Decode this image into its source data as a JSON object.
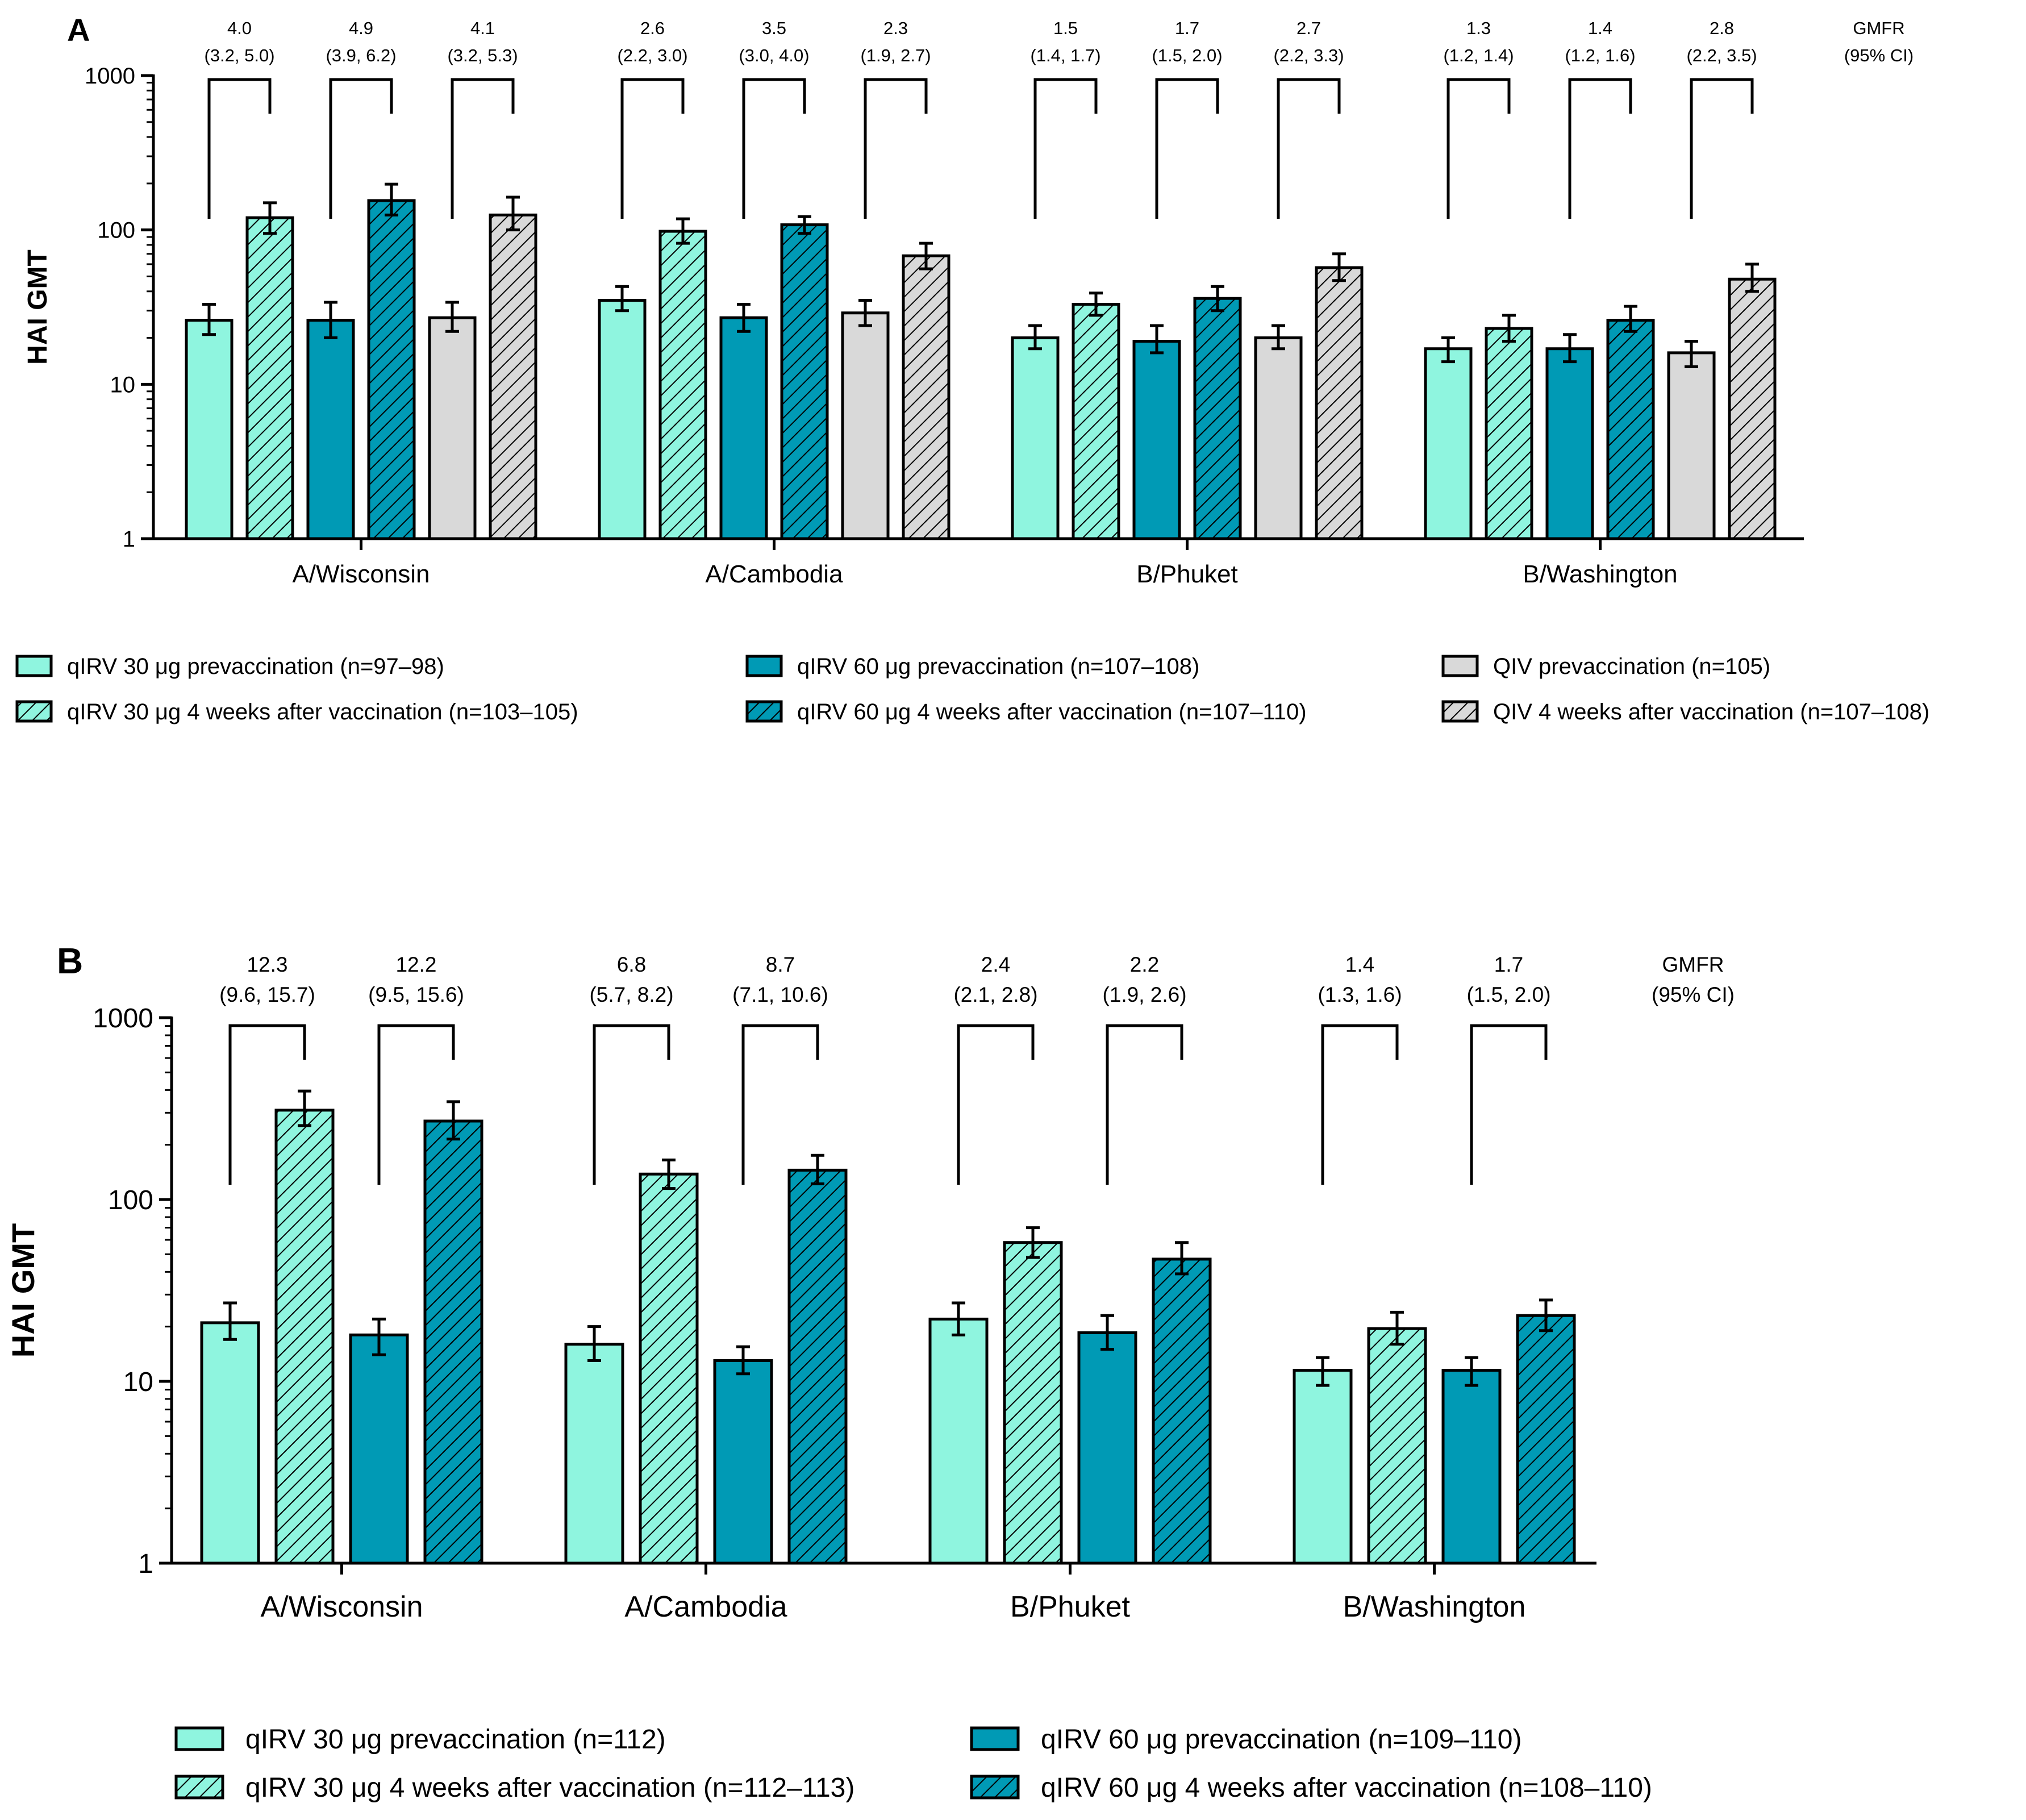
{
  "chart_data": [
    {
      "panel_label": "A",
      "type": "bar",
      "scale": "log",
      "ylabel": "HAI GMT",
      "ylim": [
        1,
        1000
      ],
      "yticks": [
        "1",
        "10",
        "100",
        "1000"
      ],
      "categories": [
        "A/Wisconsin",
        "A/Cambodia",
        "B/Phuket",
        "B/Washington"
      ],
      "series": [
        {
          "name": "qIRV 30 μg prevaccination (n=97–98)",
          "color": "#8ff5df",
          "hatched": false,
          "values": [
            26,
            35,
            20,
            17
          ],
          "err_low": [
            21,
            30,
            17,
            14
          ],
          "err_high": [
            33,
            43,
            24,
            20
          ]
        },
        {
          "name": "qIRV 30 μg 4 weeks after vaccination (n=103–105)",
          "color": "#8ff5df",
          "hatched": true,
          "values": [
            120,
            98,
            33,
            23
          ],
          "err_low": [
            95,
            82,
            28,
            19
          ],
          "err_high": [
            150,
            118,
            39,
            28
          ]
        },
        {
          "name": "qIRV 60 μg prevaccination (n=107–108)",
          "color": "#009ab5",
          "hatched": false,
          "values": [
            26,
            27,
            19,
            17
          ],
          "err_low": [
            20,
            22,
            16,
            14
          ],
          "err_high": [
            34,
            33,
            24,
            21
          ]
        },
        {
          "name": "qIRV 60 μg 4 weeks after vaccination (n=107–110)",
          "color": "#009ab5",
          "hatched": true,
          "values": [
            155,
            108,
            36,
            26
          ],
          "err_low": [
            125,
            95,
            30,
            22
          ],
          "err_high": [
            198,
            122,
            43,
            32
          ]
        },
        {
          "name": "QIV prevaccination (n=105)",
          "color": "#d9d9d9",
          "hatched": false,
          "values": [
            27,
            29,
            20,
            16
          ],
          "err_low": [
            22,
            24,
            17,
            13
          ],
          "err_high": [
            34,
            35,
            24,
            19
          ]
        },
        {
          "name": "QIV 4 weeks after vaccination (n=107–108)",
          "color": "#d9d9d9",
          "hatched": true,
          "values": [
            125,
            68,
            57,
            48
          ],
          "err_low": [
            100,
            56,
            47,
            40
          ],
          "err_high": [
            163,
            82,
            70,
            60
          ]
        }
      ],
      "gmfr_header": [
        "GMFR",
        "(95% CI)"
      ],
      "gmfr": [
        [
          {
            "value": "4.0",
            "ci": "(3.2, 5.0)"
          },
          {
            "value": "4.9",
            "ci": "(3.9, 6.2)"
          },
          {
            "value": "4.1",
            "ci": "(3.2, 5.3)"
          }
        ],
        [
          {
            "value": "2.6",
            "ci": "(2.2, 3.0)"
          },
          {
            "value": "3.5",
            "ci": "(3.0, 4.0)"
          },
          {
            "value": "2.3",
            "ci": "(1.9, 2.7)"
          }
        ],
        [
          {
            "value": "1.5",
            "ci": "(1.4, 1.7)"
          },
          {
            "value": "1.7",
            "ci": "(1.5, 2.0)"
          },
          {
            "value": "2.7",
            "ci": "(2.2, 3.3)"
          }
        ],
        [
          {
            "value": "1.3",
            "ci": "(1.2, 1.4)"
          },
          {
            "value": "1.4",
            "ci": "(1.2, 1.6)"
          },
          {
            "value": "2.8",
            "ci": "(2.2, 3.5)"
          }
        ]
      ],
      "legend_placement": "bottom"
    },
    {
      "panel_label": "B",
      "type": "bar",
      "scale": "log",
      "ylabel": "HAI GMT",
      "ylim": [
        1,
        1000
      ],
      "yticks": [
        "1",
        "10",
        "100",
        "1000"
      ],
      "categories": [
        "A/Wisconsin",
        "A/Cambodia",
        "B/Phuket",
        "B/Washington"
      ],
      "series": [
        {
          "name": "qIRV 30 μg prevaccination (n=112)",
          "color": "#8ff5df",
          "hatched": false,
          "values": [
            21,
            16,
            22,
            11.5
          ],
          "err_low": [
            17,
            13,
            18,
            9.5
          ],
          "err_high": [
            27,
            20,
            27,
            13.5
          ]
        },
        {
          "name": "qIRV 30 μg 4 weeks after vaccination (n=112–113)",
          "color": "#8ff5df",
          "hatched": true,
          "values": [
            310,
            138,
            58,
            19.5
          ],
          "err_low": [
            255,
            115,
            48,
            16
          ],
          "err_high": [
            395,
            165,
            70,
            24
          ]
        },
        {
          "name": "qIRV 60 μg prevaccination (n=109–110)",
          "color": "#009ab5",
          "hatched": false,
          "values": [
            18,
            13,
            18.5,
            11.5
          ],
          "err_low": [
            14,
            11,
            15,
            9.5
          ],
          "err_high": [
            22,
            15.5,
            23,
            13.5
          ]
        },
        {
          "name": "qIRV 60 μg 4 weeks after vaccination (n=108–110)",
          "color": "#009ab5",
          "hatched": true,
          "values": [
            270,
            145,
            47,
            23
          ],
          "err_low": [
            215,
            122,
            39,
            19
          ],
          "err_high": [
            345,
            175,
            58,
            28
          ]
        }
      ],
      "gmfr_header": [
        "GMFR",
        "(95% CI)"
      ],
      "gmfr": [
        [
          {
            "value": "12.3",
            "ci": "(9.6, 15.7)"
          },
          {
            "value": "12.2",
            "ci": "(9.5, 15.6)"
          }
        ],
        [
          {
            "value": "6.8",
            "ci": "(5.7, 8.2)"
          },
          {
            "value": "8.7",
            "ci": "(7.1, 10.6)"
          }
        ],
        [
          {
            "value": "2.4",
            "ci": "(2.1, 2.8)"
          },
          {
            "value": "2.2",
            "ci": "(1.9, 2.6)"
          }
        ],
        [
          {
            "value": "1.4",
            "ci": "(1.3, 1.6)"
          },
          {
            "value": "1.7",
            "ci": "(1.5, 2.0)"
          }
        ]
      ],
      "legend_placement": "bottom"
    }
  ]
}
